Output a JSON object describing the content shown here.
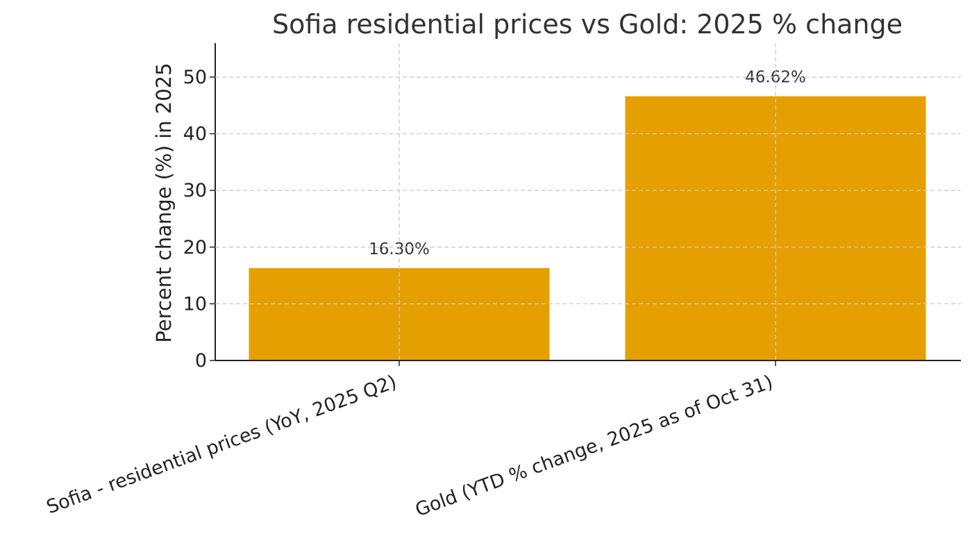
{
  "chart_data": {
    "type": "bar",
    "title": "Sofia residential prices vs Gold: 2025 % change",
    "xlabel": "",
    "ylabel": "Percent change (%) in 2025",
    "categories": [
      "Sofia - residential prices (YoY, 2025 Q2)",
      "Gold (YTD % change, 2025 as of Oct 31)"
    ],
    "values": [
      16.3,
      46.62
    ],
    "value_labels": [
      "16.30%",
      "46.62%"
    ],
    "ylim": [
      0,
      56
    ],
    "yticks": [
      0,
      10,
      20,
      30,
      40,
      50
    ],
    "grid": true,
    "bar_color": "#E69F00"
  }
}
